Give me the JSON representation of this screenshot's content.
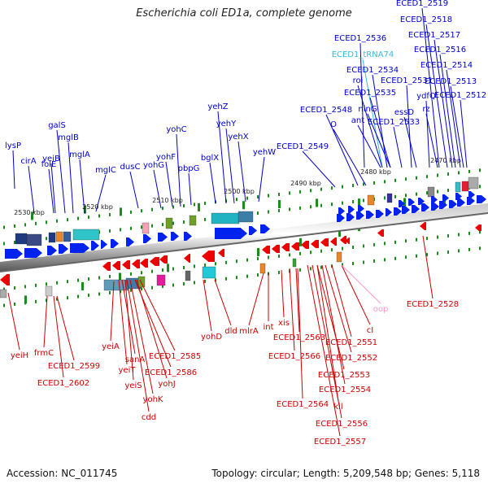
{
  "title": "Escherichia coli ED1a, complete genome",
  "footer": {
    "accession": "Accession: NC_011745",
    "summary": "Topology: circular; Length: 5,209,548 bp; Genes: 5,118"
  },
  "colors": {
    "upper_label": "#0000cc",
    "lower_label": "#cc0000",
    "trna_label": "#33bbdd",
    "pseudo_label": "#ff99cc",
    "forward_arrow": "#0022ee",
    "reverse_arrow": "#ee0000",
    "tick": "#1a8c1a",
    "axis_dark": "#666666",
    "axis_light": "#dddddd"
  },
  "scale_labels": [
    "2530 kbp",
    "2520 kbp",
    "2510 kbp",
    "2500 kbp",
    "2490 kbp",
    "2480 kbp",
    "2470 kbp"
  ],
  "upper_genes": [
    {
      "label": "lysP",
      "kind": "gene"
    },
    {
      "label": "cirA",
      "kind": "gene"
    },
    {
      "label": "folE",
      "kind": "gene"
    },
    {
      "label": "yeiB",
      "kind": "gene"
    },
    {
      "label": "galS",
      "kind": "gene"
    },
    {
      "label": "mglB",
      "kind": "gene"
    },
    {
      "label": "mglA",
      "kind": "gene"
    },
    {
      "label": "mglC",
      "kind": "gene"
    },
    {
      "label": "dusC",
      "kind": "gene"
    },
    {
      "label": "yohG",
      "kind": "gene"
    },
    {
      "label": "yohF",
      "kind": "gene"
    },
    {
      "label": "yohC",
      "kind": "gene"
    },
    {
      "label": "pbpG",
      "kind": "gene"
    },
    {
      "label": "bglX",
      "kind": "gene"
    },
    {
      "label": "yehZ",
      "kind": "gene"
    },
    {
      "label": "yehY",
      "kind": "gene"
    },
    {
      "label": "yehX",
      "kind": "gene"
    },
    {
      "label": "yehW",
      "kind": "gene"
    },
    {
      "label": "ECED1_2549",
      "kind": "gene"
    },
    {
      "label": "ECED1_2548",
      "kind": "gene"
    },
    {
      "label": "O",
      "kind": "gene"
    },
    {
      "label": "ECED1_2536",
      "kind": "gene"
    },
    {
      "label": "ECED1_tRNA74",
      "kind": "trna"
    },
    {
      "label": "ECED1_2534",
      "kind": "gene"
    },
    {
      "label": "roi",
      "kind": "gene"
    },
    {
      "label": "ECED1_2535",
      "kind": "gene"
    },
    {
      "label": "ninG",
      "kind": "gene"
    },
    {
      "label": "ant",
      "kind": "gene"
    },
    {
      "label": "ECED1_2533",
      "kind": "gene"
    },
    {
      "label": "ECED1_2531",
      "kind": "gene"
    },
    {
      "label": "essD",
      "kind": "gene"
    },
    {
      "label": "ydfQ",
      "kind": "gene"
    },
    {
      "label": "rz",
      "kind": "gene"
    },
    {
      "label": "ECED1_2519",
      "kind": "gene"
    },
    {
      "label": "ECED1_2518",
      "kind": "gene"
    },
    {
      "label": "ECED1_2517",
      "kind": "gene"
    },
    {
      "label": "ECED1_2516",
      "kind": "gene"
    },
    {
      "label": "ECED1_2514",
      "kind": "gene"
    },
    {
      "label": "ECED1_2513",
      "kind": "gene"
    },
    {
      "label": "ECED1_2512",
      "kind": "gene"
    }
  ],
  "lower_genes": [
    {
      "label": "yeiH",
      "kind": "gene"
    },
    {
      "label": "frmC",
      "kind": "gene"
    },
    {
      "label": "ECED1_2599",
      "kind": "gene"
    },
    {
      "label": "ECED1_2602",
      "kind": "gene"
    },
    {
      "label": "yeiA",
      "kind": "gene"
    },
    {
      "label": "sanA",
      "kind": "gene"
    },
    {
      "label": "yeiT",
      "kind": "gene"
    },
    {
      "label": "yeiS",
      "kind": "gene"
    },
    {
      "label": "ECED1_2585",
      "kind": "gene"
    },
    {
      "label": "ECED1_2586",
      "kind": "gene"
    },
    {
      "label": "yohJ",
      "kind": "gene"
    },
    {
      "label": "yohK",
      "kind": "gene"
    },
    {
      "label": "cdd",
      "kind": "gene"
    },
    {
      "label": "yohD",
      "kind": "gene"
    },
    {
      "label": "dld",
      "kind": "gene"
    },
    {
      "label": "mlrA",
      "kind": "gene"
    },
    {
      "label": "int",
      "kind": "gene"
    },
    {
      "label": "xis",
      "kind": "gene"
    },
    {
      "label": "ECED1_2563",
      "kind": "gene"
    },
    {
      "label": "ECED1_2566",
      "kind": "gene"
    },
    {
      "label": "ECED1_2564",
      "kind": "gene"
    },
    {
      "label": "ECED1_2551",
      "kind": "gene"
    },
    {
      "label": "ECED1_2552",
      "kind": "gene"
    },
    {
      "label": "ECED1_2553",
      "kind": "gene"
    },
    {
      "label": "ECED1_2554",
      "kind": "gene"
    },
    {
      "label": "kil",
      "kind": "gene"
    },
    {
      "label": "ECED1_2556",
      "kind": "gene"
    },
    {
      "label": "ECED1_2557",
      "kind": "gene"
    },
    {
      "label": "cI",
      "kind": "gene"
    },
    {
      "label": "oop",
      "kind": "pseudo"
    },
    {
      "label": "ECED1_2528",
      "kind": "gene"
    }
  ]
}
